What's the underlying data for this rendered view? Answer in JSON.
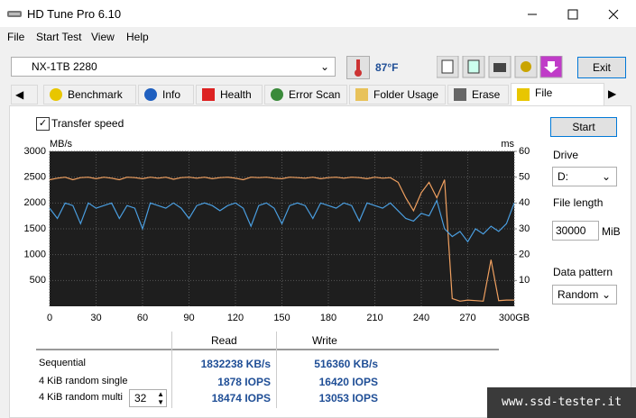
{
  "window": {
    "title": "HD Tune Pro 6.10"
  },
  "menu": [
    "File",
    "Start Test",
    "View",
    "Help"
  ],
  "toolbar": {
    "drive": "NX-1TB 2280",
    "temperature": "87°F",
    "exit": "Exit"
  },
  "tabs": [
    "Benchmark",
    "Info",
    "Health",
    "Error Scan",
    "Folder Usage",
    "Erase",
    "File Benchm..."
  ],
  "checkbox": "Transfer speed",
  "side": {
    "start": "Start",
    "drive_label": "Drive",
    "drive": "D:",
    "file_length_label": "File length",
    "file_length": "30000",
    "file_length_unit": "MiB",
    "pattern_label": "Data pattern",
    "pattern": "Random"
  },
  "chart_data": {
    "type": "line",
    "ylabel": "MB/s",
    "y2label": "ms",
    "x": [
      0,
      5,
      10,
      15,
      20,
      25,
      30,
      35,
      40,
      45,
      50,
      55,
      60,
      65,
      70,
      75,
      80,
      85,
      90,
      95,
      100,
      105,
      110,
      115,
      120,
      125,
      130,
      135,
      140,
      145,
      150,
      155,
      160,
      165,
      170,
      175,
      180,
      185,
      190,
      195,
      200,
      205,
      210,
      215,
      220,
      225,
      230,
      235,
      240,
      245,
      250,
      255,
      260,
      265,
      270,
      275,
      280,
      285,
      290,
      295,
      300
    ],
    "xlim": [
      0,
      300
    ],
    "xticks": [
      0,
      30,
      60,
      90,
      120,
      150,
      180,
      210,
      240,
      270,
      {
        "value": 300,
        "label": "300GB"
      }
    ],
    "ylim": [
      0,
      3000
    ],
    "yticks": [
      500,
      1000,
      1500,
      2000,
      2500,
      3000
    ],
    "y2lim": [
      0,
      60
    ],
    "y2ticks": [
      10,
      20,
      30,
      40,
      50,
      60
    ],
    "grid": true,
    "series": [
      {
        "color": "#f0a060",
        "values": [
          2450,
          2480,
          2500,
          2450,
          2490,
          2500,
          2470,
          2500,
          2480,
          2450,
          2500,
          2490,
          2470,
          2500,
          2480,
          2500,
          2460,
          2490,
          2500,
          2480,
          2500,
          2470,
          2490,
          2500,
          2480,
          2450,
          2500,
          2490,
          2500,
          2480,
          2470,
          2500,
          2490,
          2480,
          2500,
          2470,
          2490,
          2500,
          2480,
          2500,
          2490,
          2470,
          2500,
          2480,
          2490,
          2400,
          2100,
          1850,
          2200,
          2400,
          2100,
          2450,
          150,
          100,
          120,
          110,
          100,
          900,
          110,
          120,
          120
        ]
      },
      {
        "color": "#4a9ee0",
        "values": [
          1900,
          1700,
          2000,
          1950,
          1600,
          2000,
          1900,
          1950,
          2000,
          1700,
          1950,
          1900,
          1500,
          2000,
          1950,
          1900,
          2000,
          1900,
          1700,
          1950,
          2000,
          1950,
          1850,
          1950,
          2000,
          1900,
          1550,
          1950,
          2000,
          1900,
          1600,
          1950,
          2000,
          1950,
          1700,
          2000,
          1950,
          1900,
          2000,
          1950,
          1650,
          2000,
          1950,
          1900,
          2000,
          1850,
          1700,
          1650,
          1800,
          1750,
          2050,
          1500,
          1350,
          1450,
          1250,
          1500,
          1400,
          1550,
          1450,
          1600,
          2000
        ]
      }
    ]
  },
  "results": {
    "headers": [
      "Read",
      "Write"
    ],
    "rows": [
      [
        "Sequential",
        "1832238 KB/s",
        "516360 KB/s"
      ],
      [
        "4 KiB random single",
        "1878 IOPS",
        "16420 IOPS"
      ],
      [
        "4 KiB random multi",
        "18474 IOPS",
        "13053 IOPS"
      ]
    ],
    "queue_depth": "32"
  },
  "watermark": "www.ssd-tester.it"
}
